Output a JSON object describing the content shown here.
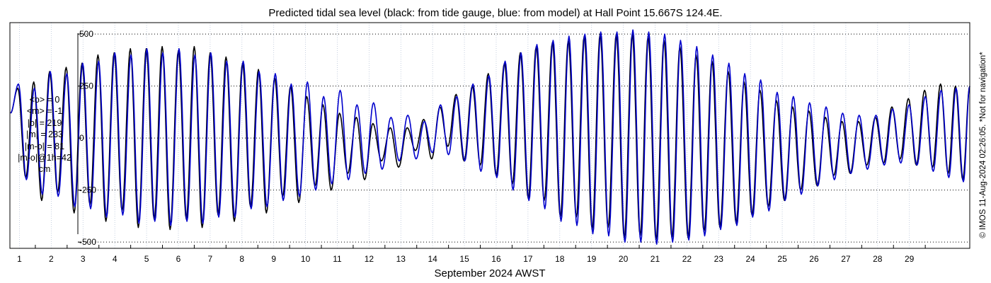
{
  "chart_data": {
    "type": "line",
    "title": "Predicted tidal sea level (black: from tide gauge, blue: from model) at Hall Point 15.667S 124.4E.",
    "xlabel": "September 2024 AWST",
    "ylabel": "",
    "x_range_days": [
      0.7,
      30.9
    ],
    "ylim": [
      -530,
      555
    ],
    "y_ticks": [
      -500,
      -250,
      0,
      250,
      500
    ],
    "y_tick_labels": [
      "-500",
      "-250",
      "0",
      "250",
      "500"
    ],
    "x_ticks": [
      1,
      2,
      3,
      4,
      5,
      6,
      7,
      8,
      9,
      10,
      11,
      12,
      13,
      14,
      15,
      16,
      17,
      18,
      19,
      20,
      21,
      22,
      23,
      24,
      25,
      26,
      27,
      28,
      29
    ],
    "x_tick_labels": [
      "1",
      "2",
      "3",
      "4",
      "5",
      "6",
      "7",
      "8",
      "9",
      "10",
      "11",
      "12",
      "13",
      "14",
      "15",
      "16",
      "17",
      "18",
      "19",
      "20",
      "21",
      "22",
      "23",
      "24",
      "25",
      "26",
      "27",
      "28",
      "29"
    ],
    "grid": true,
    "series": [
      {
        "color": "#000000",
        "high_tide_day": [
          0.95,
          1.45,
          1.95,
          2.47,
          2.97,
          3.47,
          3.98,
          4.49,
          4.99,
          5.49,
          6.0,
          6.5,
          7.0,
          7.5,
          8.02,
          8.52,
          9.03,
          9.53,
          10.04,
          10.55,
          11.07,
          11.6,
          12.12,
          12.67,
          13.2,
          13.72,
          14.23,
          14.74,
          15.25,
          15.75,
          16.26,
          16.76,
          17.26,
          17.77,
          18.27,
          18.77,
          19.27,
          19.78,
          20.28,
          20.78,
          21.28,
          21.78,
          22.29,
          22.79,
          23.3,
          23.8,
          24.3,
          24.82,
          25.33,
          25.84,
          26.36,
          26.88,
          27.4,
          27.93,
          28.45,
          28.97,
          29.48,
          29.98,
          30.45,
          30.9
        ],
        "high_tide_value": [
          240,
          270,
          320,
          340,
          360,
          400,
          410,
          430,
          430,
          440,
          420,
          440,
          410,
          390,
          360,
          330,
          290,
          250,
          200,
          160,
          120,
          100,
          70,
          50,
          50,
          90,
          150,
          210,
          250,
          310,
          360,
          410,
          440,
          460,
          470,
          490,
          500,
          500,
          500,
          490,
          470,
          440,
          400,
          370,
          320,
          270,
          230,
          180,
          150,
          130,
          100,
          80,
          80,
          100,
          150,
          190,
          230,
          260,
          250,
          250
        ],
        "low_tide_day": [
          1.2,
          1.7,
          2.2,
          2.72,
          3.22,
          3.72,
          4.23,
          4.74,
          5.24,
          5.74,
          6.25,
          6.75,
          7.25,
          7.76,
          8.27,
          8.77,
          9.28,
          9.79,
          10.3,
          10.81,
          11.33,
          11.86,
          12.39,
          12.93,
          13.46,
          13.97,
          14.48,
          14.99,
          15.5,
          16.0,
          16.51,
          17.01,
          17.51,
          18.02,
          18.52,
          19.02,
          19.52,
          20.03,
          20.53,
          21.03,
          21.53,
          22.04,
          22.54,
          23.04,
          23.55,
          24.05,
          24.56,
          25.07,
          25.58,
          26.1,
          26.62,
          27.14,
          27.66,
          28.19,
          28.71,
          29.22,
          29.73,
          30.22,
          30.68
        ],
        "low_tide_value": [
          -190,
          -300,
          -260,
          -360,
          -320,
          -400,
          -350,
          -430,
          -390,
          -440,
          -390,
          -430,
          -370,
          -400,
          -330,
          -360,
          -280,
          -310,
          -230,
          -250,
          -170,
          -200,
          -110,
          -140,
          -60,
          -100,
          -40,
          -110,
          -130,
          -180,
          -220,
          -290,
          -300,
          -380,
          -380,
          -440,
          -430,
          -480,
          -470,
          -490,
          -480,
          -480,
          -450,
          -430,
          -410,
          -370,
          -330,
          -300,
          -250,
          -230,
          -180,
          -170,
          -130,
          -120,
          -100,
          -130,
          -140,
          -170,
          -200
        ]
      },
      {
        "color": "#0000cc",
        "high_tide_day": [
          0.97,
          1.47,
          1.97,
          2.49,
          2.99,
          3.49,
          4.0,
          4.51,
          5.01,
          5.51,
          6.02,
          6.52,
          7.02,
          7.52,
          8.04,
          8.54,
          9.05,
          9.55,
          10.06,
          10.57,
          11.09,
          11.62,
          12.14,
          12.69,
          13.22,
          13.74,
          14.25,
          14.76,
          15.27,
          15.77,
          16.28,
          16.78,
          17.28,
          17.79,
          18.29,
          18.79,
          19.29,
          19.8,
          20.3,
          20.8,
          21.3,
          21.8,
          22.31,
          22.81,
          23.32,
          23.82,
          24.32,
          24.84,
          25.35,
          25.86,
          26.38,
          26.9,
          27.42,
          27.95,
          28.47,
          28.99,
          29.5,
          30.0,
          30.47,
          30.9
        ],
        "high_tide_value": [
          260,
          240,
          320,
          310,
          360,
          370,
          410,
          400,
          430,
          410,
          430,
          400,
          410,
          370,
          370,
          320,
          310,
          260,
          270,
          200,
          230,
          160,
          170,
          100,
          110,
          80,
          160,
          200,
          260,
          300,
          370,
          410,
          450,
          470,
          490,
          500,
          510,
          510,
          520,
          510,
          500,
          470,
          440,
          400,
          360,
          310,
          280,
          220,
          200,
          170,
          150,
          120,
          110,
          110,
          140,
          160,
          200,
          230,
          240,
          250
        ],
        "low_tide_value_note": "",
        "low_tide_day": [
          1.22,
          1.72,
          2.22,
          2.74,
          3.24,
          3.74,
          4.25,
          4.76,
          5.26,
          5.76,
          6.27,
          6.77,
          7.27,
          7.78,
          8.29,
          8.79,
          9.3,
          9.81,
          10.32,
          10.83,
          11.35,
          11.88,
          12.41,
          12.95,
          13.48,
          13.99,
          14.5,
          15.01,
          15.52,
          16.02,
          16.53,
          17.03,
          17.53,
          18.04,
          18.54,
          19.04,
          19.54,
          20.05,
          20.55,
          21.05,
          21.55,
          22.06,
          22.56,
          23.06,
          23.57,
          24.07,
          24.58,
          25.09,
          25.6,
          26.12,
          26.64,
          27.16,
          27.68,
          28.21,
          28.73,
          29.24,
          29.75,
          30.24,
          30.7
        ],
        "low_tide_value": [
          -200,
          -270,
          -280,
          -330,
          -340,
          -380,
          -370,
          -410,
          -400,
          -420,
          -400,
          -410,
          -380,
          -380,
          -340,
          -330,
          -300,
          -280,
          -250,
          -220,
          -200,
          -170,
          -150,
          -110,
          -100,
          -70,
          -80,
          -110,
          -160,
          -190,
          -250,
          -300,
          -340,
          -400,
          -420,
          -460,
          -470,
          -500,
          -500,
          -510,
          -500,
          -490,
          -470,
          -440,
          -420,
          -380,
          -350,
          -300,
          -270,
          -230,
          -200,
          -170,
          -150,
          -130,
          -120,
          -130,
          -160,
          -190,
          -210
        ]
      }
    ]
  },
  "stats": {
    "lines": [
      "<o> = 0",
      "<m> = -1",
      "|o| = 219",
      "|m| = 233",
      "|m-o| = 81",
      "|m-o|@1h=42",
      "cm"
    ]
  },
  "credit": "© IMOS 11-Aug-2024 02:26:05. *Not for navigation*"
}
